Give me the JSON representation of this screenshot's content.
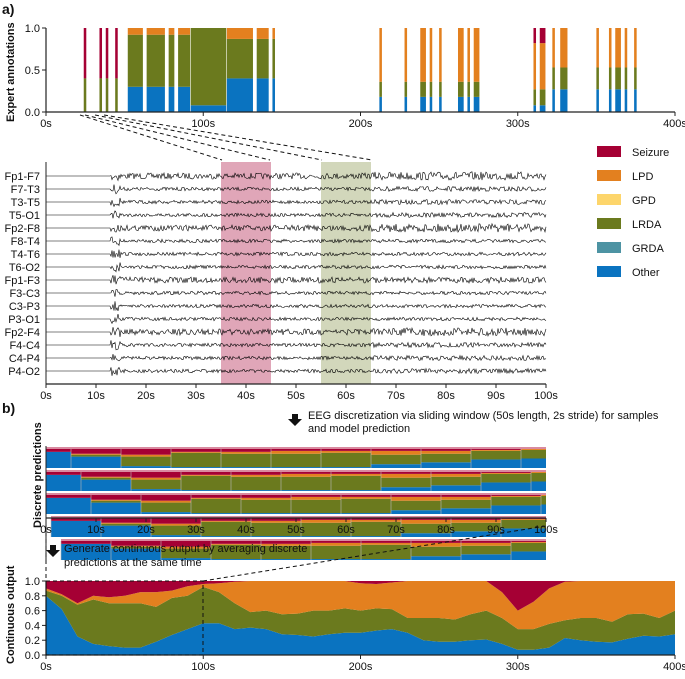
{
  "colors": {
    "Seizure": "#a50034",
    "LPD": "#e3801f",
    "GPD": "#fdd56b",
    "LRDA": "#6b7a1e",
    "GRDA": "#4d93a3",
    "Other": "#0a73c0"
  },
  "legend": [
    "Seizure",
    "LPD",
    "GPD",
    "LRDA",
    "GRDA",
    "Other"
  ],
  "panel_a": {
    "label": "a)"
  },
  "panel_b": {
    "label": "b)"
  },
  "notes": {
    "discretization_line1": "EEG discretization via sliding window (50s length, 2s stride) for samples",
    "discretization_line2": "and model prediction",
    "continuous_line1": "Generate continuous output by averaging discrete",
    "continuous_line2": "predictions at the same time"
  },
  "chart_data": [
    {
      "type": "bar",
      "ylabel": "Expert annotations",
      "xlim": [
        0,
        400
      ],
      "ylim": [
        0,
        1
      ],
      "xticks": [
        "0s",
        "100s",
        "200s",
        "300s",
        "400s"
      ],
      "yticks": [
        "0.0",
        "0.5",
        "1.0"
      ],
      "bars": [
        {
          "t": [
            24,
            26
          ],
          "Other": 0,
          "LRDA": 0.4,
          "LPD": 0,
          "Seizure": 0.6
        },
        {
          "t": [
            34,
            36
          ],
          "Other": 0,
          "LRDA": 0.4,
          "LPD": 0,
          "Seizure": 0.6
        },
        {
          "t": [
            38,
            40
          ],
          "Other": 0,
          "LRDA": 0.4,
          "LPD": 0,
          "Seizure": 0.6
        },
        {
          "t": [
            44,
            46
          ],
          "Other": 0,
          "LRDA": 0.4,
          "LPD": 0,
          "Seizure": 0.6
        },
        {
          "t": [
            52,
            62
          ],
          "Other": 0.3,
          "LRDA": 0.62,
          "LPD": 0.08,
          "Seizure": 0
        },
        {
          "t": [
            64,
            76
          ],
          "Other": 0.3,
          "LRDA": 0.62,
          "LPD": 0.08,
          "Seizure": 0
        },
        {
          "t": [
            78,
            82
          ],
          "Other": 0.3,
          "LRDA": 0.62,
          "LPD": 0.08,
          "Seizure": 0
        },
        {
          "t": [
            84,
            92
          ],
          "Other": 0.3,
          "LRDA": 0.62,
          "LPD": 0.08,
          "Seizure": 0
        },
        {
          "t": [
            92,
            115
          ],
          "Other": 0.08,
          "LRDA": 0.92,
          "LPD": 0,
          "Seizure": 0
        },
        {
          "t": [
            115,
            132
          ],
          "Other": 0.4,
          "LRDA": 0.47,
          "LPD": 0.13,
          "Seizure": 0
        },
        {
          "t": [
            134,
            142
          ],
          "Other": 0.4,
          "LRDA": 0.47,
          "LPD": 0.13,
          "Seizure": 0
        },
        {
          "t": [
            144,
            146
          ],
          "Other": 0.4,
          "LRDA": 0.47,
          "LPD": 0.13,
          "Seizure": 0
        },
        {
          "t": [
            212,
            214
          ],
          "Other": 0.18,
          "LRDA": 0.18,
          "LPD": 0.64,
          "Seizure": 0
        },
        {
          "t": [
            228,
            230
          ],
          "Other": 0.18,
          "LRDA": 0.18,
          "LPD": 0.64,
          "Seizure": 0
        },
        {
          "t": [
            238,
            242
          ],
          "Other": 0.18,
          "LRDA": 0.18,
          "LPD": 0.64,
          "Seizure": 0
        },
        {
          "t": [
            244,
            246
          ],
          "Other": 0.18,
          "LRDA": 0.18,
          "LPD": 0.64,
          "Seizure": 0
        },
        {
          "t": [
            250,
            252
          ],
          "Other": 0.18,
          "LRDA": 0.18,
          "LPD": 0.64,
          "Seizure": 0
        },
        {
          "t": [
            262,
            266
          ],
          "Other": 0.18,
          "LRDA": 0.18,
          "LPD": 0.64,
          "Seizure": 0
        },
        {
          "t": [
            268,
            270
          ],
          "Other": 0.18,
          "LRDA": 0.18,
          "LPD": 0.64,
          "Seizure": 0
        },
        {
          "t": [
            272,
            276
          ],
          "Other": 0.18,
          "LRDA": 0.18,
          "LPD": 0.64,
          "Seizure": 0
        },
        {
          "t": [
            310,
            312
          ],
          "Other": 0.08,
          "LRDA": 0.19,
          "LPD": 0.55,
          "Seizure": 0.18
        },
        {
          "t": [
            314,
            318
          ],
          "Other": 0.08,
          "LRDA": 0.19,
          "LPD": 0.55,
          "Seizure": 0.18
        },
        {
          "t": [
            322,
            324
          ],
          "Other": 0.27,
          "LRDA": 0.26,
          "LPD": 0.47,
          "Seizure": 0
        },
        {
          "t": [
            327,
            332
          ],
          "Other": 0.27,
          "LRDA": 0.26,
          "LPD": 0.47,
          "Seizure": 0
        },
        {
          "t": [
            350,
            352
          ],
          "Other": 0.27,
          "LRDA": 0.26,
          "LPD": 0.47,
          "Seizure": 0
        },
        {
          "t": [
            358,
            360
          ],
          "Other": 0.27,
          "LRDA": 0.26,
          "LPD": 0.47,
          "Seizure": 0
        },
        {
          "t": [
            362,
            366
          ],
          "Other": 0.27,
          "LRDA": 0.26,
          "LPD": 0.47,
          "Seizure": 0
        },
        {
          "t": [
            368,
            370
          ],
          "Other": 0.27,
          "LRDA": 0.26,
          "LPD": 0.47,
          "Seizure": 0
        },
        {
          "t": [
            374,
            376
          ],
          "Other": 0.27,
          "LRDA": 0.26,
          "LPD": 0.47,
          "Seizure": 0
        }
      ]
    },
    {
      "type": "line",
      "xlim": [
        0,
        100
      ],
      "xticks": [
        "0s",
        "10s",
        "20s",
        "30s",
        "40s",
        "50s",
        "60s",
        "70s",
        "80s",
        "90s",
        "100s"
      ],
      "channels": [
        "Fp1-F7",
        "F7-T3",
        "T3-T5",
        "T5-O1",
        "Fp2-F8",
        "F8-T4",
        "T4-T6",
        "T6-O2",
        "Fp1-F3",
        "F3-C3",
        "C3-P3",
        "P3-O1",
        "Fp2-F4",
        "F4-C4",
        "C4-P4",
        "P4-O2"
      ],
      "highlights": [
        {
          "t": [
            35,
            45
          ],
          "class": "Seizure"
        },
        {
          "t": [
            55,
            65
          ],
          "class": "LRDA"
        }
      ]
    },
    {
      "type": "bar",
      "ylabel": "Discrete predictions",
      "xlim": [
        0,
        100
      ],
      "xticks": [
        "0s",
        "10s",
        "20s",
        "30s",
        "40s",
        "50s",
        "60s",
        "70s",
        "80s",
        "90s",
        "100s"
      ],
      "rows": [
        {
          "start": 0,
          "first_end": 5
        },
        {
          "start": 0,
          "first_end": 7
        },
        {
          "start": 0,
          "first_end": 9
        },
        {
          "start": 1,
          "first_end": 11
        },
        {
          "start": 3,
          "first_end": 13
        }
      ],
      "block_fractions": [
        {
          "Other": 0.85,
          "LRDA": 0,
          "LPD": 0,
          "Seizure": 0.15
        },
        {
          "Other": 0.6,
          "LRDA": 0.1,
          "LPD": 0.05,
          "Seizure": 0.25
        },
        {
          "Other": 0.1,
          "LRDA": 0.5,
          "LPD": 0.1,
          "Seizure": 0.3
        },
        {
          "Other": 0.05,
          "LRDA": 0.75,
          "LPD": 0.05,
          "Seizure": 0.15
        },
        {
          "Other": 0.05,
          "LRDA": 0.7,
          "LPD": 0.1,
          "Seizure": 0.15
        },
        {
          "Other": 0.05,
          "LRDA": 0.7,
          "LPD": 0.15,
          "Seizure": 0.1
        },
        {
          "Other": 0.05,
          "LRDA": 0.75,
          "LPD": 0.1,
          "Seizure": 0.1
        },
        {
          "Other": 0.2,
          "LRDA": 0.5,
          "LPD": 0.2,
          "Seizure": 0.1
        },
        {
          "Other": 0.3,
          "LRDA": 0.45,
          "LPD": 0.15,
          "Seizure": 0.1
        },
        {
          "Other": 0.45,
          "LRDA": 0.45,
          "LPD": 0.05,
          "Seizure": 0.05
        },
        {
          "Other": 0.5,
          "LRDA": 0.45,
          "LPD": 0.05,
          "Seizure": 0
        }
      ]
    },
    {
      "type": "area",
      "ylabel": "Continuous output",
      "xlim": [
        0,
        400
      ],
      "ylim": [
        0,
        1
      ],
      "xticks": [
        "0s",
        "100s",
        "200s",
        "300s",
        "400s"
      ],
      "yticks": [
        "0.0",
        "0.2",
        "0.4",
        "0.6",
        "0.8",
        "1.0"
      ],
      "x": [
        0,
        10,
        20,
        30,
        40,
        50,
        60,
        70,
        80,
        90,
        100,
        110,
        120,
        130,
        140,
        150,
        160,
        170,
        180,
        190,
        200,
        210,
        220,
        230,
        240,
        250,
        260,
        270,
        280,
        290,
        300,
        310,
        320,
        330,
        340,
        350,
        360,
        370,
        380,
        390,
        400
      ],
      "series": [
        {
          "name": "Other",
          "values": [
            0.8,
            0.62,
            0.25,
            0.15,
            0.12,
            0.1,
            0.1,
            0.18,
            0.27,
            0.35,
            0.43,
            0.43,
            0.35,
            0.37,
            0.35,
            0.28,
            0.27,
            0.25,
            0.28,
            0.3,
            0.3,
            0.33,
            0.35,
            0.3,
            0.2,
            0.18,
            0.18,
            0.2,
            0.21,
            0.15,
            0.07,
            0.07,
            0.1,
            0.23,
            0.2,
            0.18,
            0.17,
            0.22,
            0.26,
            0.25,
            0.28
          ]
        },
        {
          "name": "LRDA",
          "values": [
            0.07,
            0.18,
            0.43,
            0.6,
            0.58,
            0.6,
            0.6,
            0.47,
            0.5,
            0.45,
            0.49,
            0.42,
            0.35,
            0.21,
            0.25,
            0.27,
            0.29,
            0.35,
            0.32,
            0.33,
            0.3,
            0.3,
            0.27,
            0.2,
            0.3,
            0.32,
            0.3,
            0.35,
            0.39,
            0.35,
            0.28,
            0.28,
            0.32,
            0.24,
            0.3,
            0.32,
            0.28,
            0.33,
            0.3,
            0.25,
            0.32
          ]
        },
        {
          "name": "LPD",
          "values": [
            0.03,
            0.02,
            0.02,
            0.05,
            0.08,
            0.1,
            0.15,
            0.2,
            0.1,
            0.13,
            0.04,
            0.12,
            0.29,
            0.42,
            0.4,
            0.45,
            0.44,
            0.4,
            0.4,
            0.37,
            0.37,
            0.33,
            0.36,
            0.5,
            0.5,
            0.5,
            0.52,
            0.45,
            0.4,
            0.35,
            0.25,
            0.37,
            0.48,
            0.52,
            0.5,
            0.5,
            0.55,
            0.45,
            0.44,
            0.5,
            0.4
          ]
        },
        {
          "name": "Seizure",
          "values": [
            0.1,
            0.18,
            0.3,
            0.2,
            0.22,
            0.2,
            0.15,
            0.15,
            0.13,
            0.07,
            0.04,
            0.03,
            0.01,
            0,
            0,
            0,
            0,
            0,
            0,
            0,
            0.03,
            0.04,
            0.02,
            0,
            0,
            0,
            0,
            0,
            0,
            0.15,
            0.4,
            0.28,
            0.1,
            0.01,
            0,
            0,
            0,
            0,
            0,
            0,
            0
          ]
        }
      ]
    }
  ]
}
